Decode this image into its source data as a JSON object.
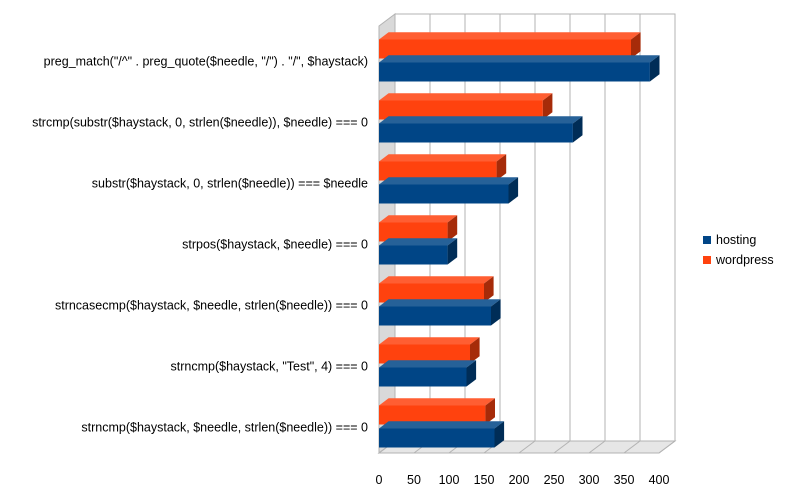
{
  "chart_data": {
    "type": "bar",
    "orientation": "horizontal",
    "three_d": true,
    "categories": [
      "preg_match(\"/^\" . preg_quote($needle, \"/\") . \"/\", $haystack)",
      "strcmp(substr($haystack, 0, strlen($needle)), $needle) === 0",
      "substr($haystack, 0, strlen($needle)) === $needle",
      "strpos($haystack, $needle) === 0",
      "strncasecmp($haystack, $needle, strlen($needle)) === 0",
      "strncmp($haystack, \"Test\", 4) === 0",
      "strncmp($haystack, $needle, strlen($needle)) === 0"
    ],
    "series": [
      {
        "name": "hosting",
        "color": "#004586",
        "values": [
          387,
          277,
          185,
          98,
          160,
          125,
          165
        ]
      },
      {
        "name": "wordpress",
        "color": "#ff420e",
        "values": [
          360,
          234,
          168,
          98,
          150,
          130,
          152
        ]
      }
    ],
    "xlim": [
      0,
      400
    ],
    "xticks": [
      "0",
      "50",
      "100",
      "150",
      "200",
      "250",
      "300",
      "350",
      "400"
    ],
    "grid": true,
    "legend_position": "right"
  }
}
